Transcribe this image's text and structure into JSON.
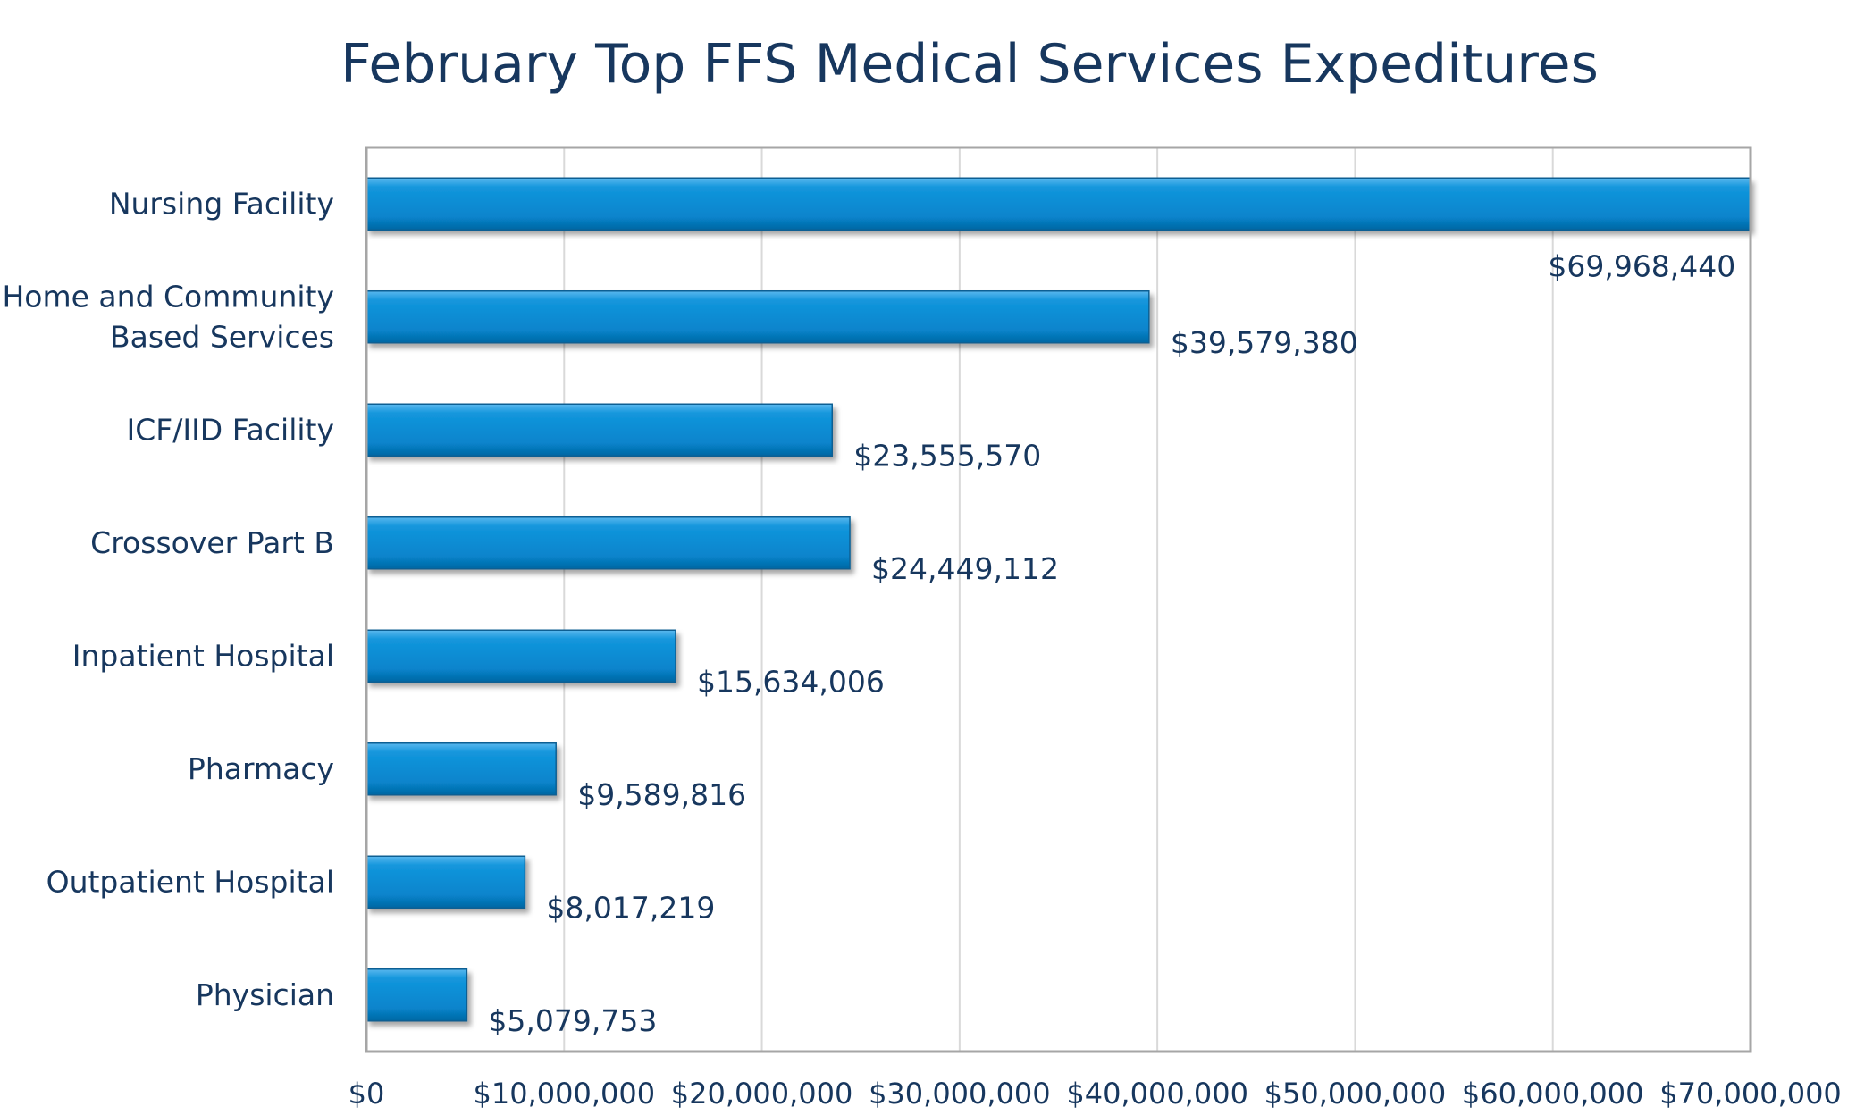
{
  "chart_data": {
    "type": "bar",
    "orientation": "horizontal",
    "title": "February Top FFS Medical Services Expeditures",
    "xlabel": "",
    "ylabel": "",
    "xlim": [
      0,
      70000000
    ],
    "tick_values": [
      0,
      10000000,
      20000000,
      30000000,
      40000000,
      50000000,
      60000000,
      70000000
    ],
    "tick_labels": [
      "$0",
      "$10,000,000",
      "$20,000,000",
      "$30,000,000",
      "$40,000,000",
      "$50,000,000",
      "$60,000,000",
      "$70,000,000"
    ],
    "grid": true,
    "legend": "none",
    "bar_color": "#0a86cf",
    "categories": [
      [
        "Nursing Facility"
      ],
      [
        "Home and Community",
        "Based Services"
      ],
      [
        "ICF/IID Facility"
      ],
      [
        "Crossover Part B"
      ],
      [
        "Inpatient Hospital"
      ],
      [
        "Pharmacy"
      ],
      [
        "Outpatient Hospital"
      ],
      [
        "Physician"
      ]
    ],
    "values": [
      69968440,
      39579380,
      23555570,
      24449112,
      15634006,
      9589816,
      8017219,
      5079753
    ],
    "data_labels": [
      "$69,968,440",
      "$39,579,380",
      "$23,555,570",
      "$24,449,112",
      "$15,634,006",
      "$9,589,816",
      "$8,017,219",
      "$5,079,753"
    ]
  }
}
